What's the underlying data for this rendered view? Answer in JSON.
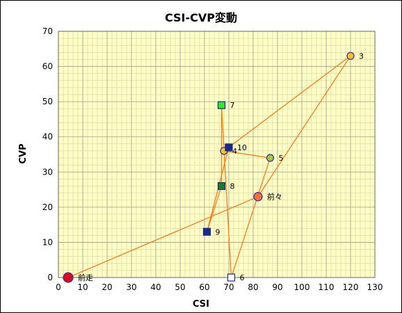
{
  "chart_data": {
    "type": "scatter",
    "title": "CSI-CVP変動",
    "xlabel": "CSI",
    "ylabel": "CVP",
    "xlim": [
      0,
      130
    ],
    "ylim": [
      0,
      70
    ],
    "x_ticks": [
      "0",
      "10",
      "20",
      "30",
      "40",
      "50",
      "60",
      "70",
      "80",
      "90",
      "100",
      "110",
      "120",
      "130"
    ],
    "y_ticks": [
      "0",
      "10",
      "20",
      "30",
      "40",
      "50",
      "60",
      "70"
    ],
    "grid": true,
    "colors": {
      "plot_background": "#ffffc4",
      "grid_major": "#9a9a9a",
      "grid_minor": "#cfcfb0",
      "line": "#ff7a18"
    },
    "path_order": [
      "前走",
      "前々",
      "3",
      "4",
      "5",
      "6",
      "7",
      "8",
      "9",
      "10"
    ],
    "points": [
      {
        "label": "前走",
        "x": 4,
        "y": 0,
        "shape": "circle",
        "fill": "#e8001c",
        "stroke": "#2b3aa8",
        "r": 7
      },
      {
        "label": "前々",
        "x": 82,
        "y": 23,
        "shape": "circle",
        "fill": "#ff6d3d",
        "stroke": "#2b3aa8",
        "r": 6
      },
      {
        "label": "3",
        "x": 120,
        "y": 63,
        "shape": "circle",
        "fill": "#ffc21a",
        "stroke": "#2b3aa8",
        "r": 5
      },
      {
        "label": "4",
        "x": 68,
        "y": 36,
        "shape": "circle",
        "fill": "#ffc21a",
        "stroke": "#2b3aa8",
        "r": 5
      },
      {
        "label": "5",
        "x": 87,
        "y": 34,
        "shape": "circle",
        "fill": "#a8c83a",
        "stroke": "#2b3aa8",
        "r": 5
      },
      {
        "label": "6",
        "x": 71,
        "y": 0,
        "shape": "square",
        "fill": "#ffffff",
        "stroke": "#1a2a8a",
        "r": 5
      },
      {
        "label": "7",
        "x": 67,
        "y": 49,
        "shape": "square",
        "fill": "#2ee82e",
        "stroke": "#1a2a8a",
        "r": 5
      },
      {
        "label": "8",
        "x": 67,
        "y": 26,
        "shape": "square",
        "fill": "#1a7a2a",
        "stroke": "#1a2a8a",
        "r": 5
      },
      {
        "label": "9",
        "x": 61,
        "y": 13,
        "shape": "square",
        "fill": "#1a2a8a",
        "stroke": "#1a2a8a",
        "r": 5
      },
      {
        "label": "10",
        "x": 70,
        "y": 37,
        "shape": "square",
        "fill": "#1a2a8a",
        "stroke": "#1a2a8a",
        "r": 5
      }
    ]
  }
}
